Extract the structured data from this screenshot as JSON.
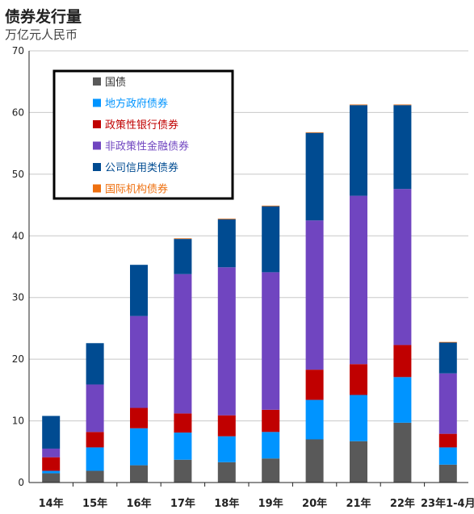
{
  "header": {
    "title": "债券发行量",
    "unit": "万亿元人民币"
  },
  "chart_data": {
    "type": "bar",
    "stacked": true,
    "title": "债券发行量",
    "ylabel": "万亿元人民币",
    "xlabel": "",
    "ylim": [
      0,
      70
    ],
    "yticks": [
      0,
      10,
      20,
      30,
      40,
      50,
      60,
      70
    ],
    "grid": true,
    "legend_position": "top-left",
    "categories": [
      "14年",
      "15年",
      "16年",
      "17年",
      "18年",
      "19年",
      "20年",
      "21年",
      "22年",
      "23年1-4月"
    ],
    "series": [
      {
        "name": "国债",
        "color": "#595959",
        "values": [
          1.5,
          1.9,
          2.8,
          3.7,
          3.3,
          3.9,
          7.0,
          6.7,
          9.7,
          2.9
        ]
      },
      {
        "name": "地方政府债券",
        "color": "#0094ff",
        "values": [
          0.4,
          3.8,
          6.0,
          4.4,
          4.2,
          4.3,
          6.4,
          7.5,
          7.4,
          2.8
        ]
      },
      {
        "name": "政策性银行债券",
        "color": "#c00000",
        "values": [
          2.2,
          2.5,
          3.3,
          3.1,
          3.4,
          3.6,
          4.9,
          5.0,
          5.2,
          2.2
        ]
      },
      {
        "name": "非政策性金融债券",
        "color": "#7045c0",
        "values": [
          1.4,
          7.7,
          14.9,
          22.6,
          24.0,
          22.3,
          24.2,
          27.3,
          25.3,
          9.8
        ]
      },
      {
        "name": "公司信用类债券",
        "color": "#004b91",
        "values": [
          5.3,
          6.7,
          8.3,
          5.7,
          7.8,
          10.7,
          14.2,
          14.7,
          13.6,
          5.0
        ]
      },
      {
        "name": "国际机构债券",
        "color": "#ee7010",
        "values": [
          0.0,
          0.0,
          0.0,
          0.1,
          0.1,
          0.1,
          0.1,
          0.1,
          0.1,
          0.1
        ]
      }
    ]
  }
}
